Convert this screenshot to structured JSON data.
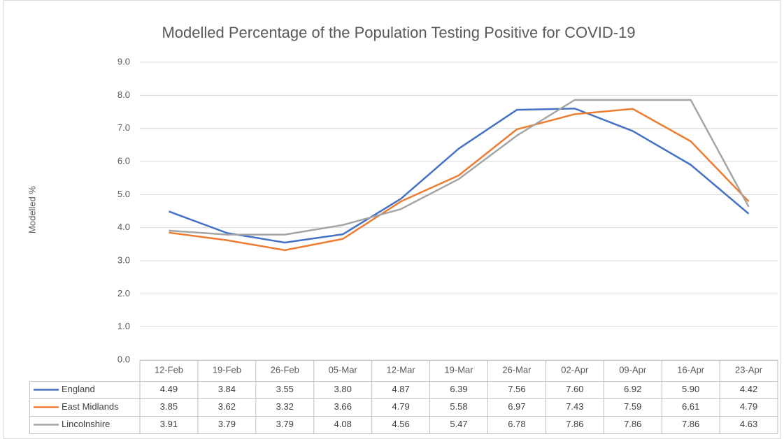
{
  "chart_data": {
    "type": "line",
    "title": "Modelled Percentage of the Population Testing Positive for COVID-19",
    "y_label": "Modelled %",
    "categories": [
      "12-Feb",
      "19-Feb",
      "26-Feb",
      "05-Mar",
      "12-Mar",
      "19-Mar",
      "26-Mar",
      "02-Apr",
      "09-Apr",
      "16-Apr",
      "23-Apr"
    ],
    "series": [
      {
        "name": "England",
        "color": "#4472c4",
        "values": [
          4.49,
          3.84,
          3.55,
          3.8,
          4.87,
          6.39,
          7.56,
          7.6,
          6.92,
          5.9,
          4.42
        ],
        "value_labels": [
          "4.49",
          "3.84",
          "3.55",
          "3.80",
          "4.87",
          "6.39",
          "7.56",
          "7.60",
          "6.92",
          "5.90",
          "4.42"
        ]
      },
      {
        "name": "East Midlands",
        "color": "#ed7d31",
        "values": [
          3.85,
          3.62,
          3.32,
          3.66,
          4.79,
          5.58,
          6.97,
          7.43,
          7.59,
          6.61,
          4.79
        ],
        "value_labels": [
          "3.85",
          "3.62",
          "3.32",
          "3.66",
          "4.79",
          "5.58",
          "6.97",
          "7.43",
          "7.59",
          "6.61",
          "4.79"
        ]
      },
      {
        "name": "Lincolnshire",
        "color": "#a5a5a5",
        "values": [
          3.91,
          3.79,
          3.79,
          4.08,
          4.56,
          5.47,
          6.78,
          7.86,
          7.86,
          7.86,
          4.63
        ],
        "value_labels": [
          "3.91",
          "3.79",
          "3.79",
          "4.08",
          "4.56",
          "5.47",
          "6.78",
          "7.86",
          "7.86",
          "7.86",
          "4.63"
        ]
      }
    ],
    "ylim": [
      0,
      9
    ],
    "yticks": [
      {
        "value": 0,
        "label": "0.0"
      },
      {
        "value": 1,
        "label": "1.0"
      },
      {
        "value": 2,
        "label": "2.0"
      },
      {
        "value": 3,
        "label": "3.0"
      },
      {
        "value": 4,
        "label": "4.0"
      },
      {
        "value": 5,
        "label": "5.0"
      },
      {
        "value": 6,
        "label": "6.0"
      },
      {
        "value": 7,
        "label": "7.0"
      },
      {
        "value": 8,
        "label": "8.0"
      },
      {
        "value": 9,
        "label": "9.0"
      }
    ],
    "grid": true
  }
}
